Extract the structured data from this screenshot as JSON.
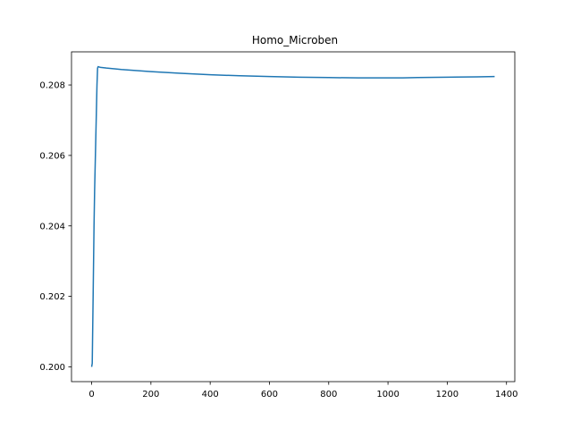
{
  "chart_data": {
    "type": "line",
    "title": "Homo_Microben",
    "xlabel": "",
    "ylabel": "",
    "xlim": [
      -68,
      1428
    ],
    "ylim": [
      0.19958,
      0.20894
    ],
    "x_ticks": [
      0,
      200,
      400,
      600,
      800,
      1000,
      1200,
      1400
    ],
    "y_ticks": [
      0.2,
      0.202,
      0.204,
      0.206,
      0.208
    ],
    "x_tick_labels": [
      "0",
      "200",
      "400",
      "600",
      "800",
      "1000",
      "1200",
      "1400"
    ],
    "y_tick_labels": [
      "0.200",
      "0.202",
      "0.204",
      "0.206",
      "0.208"
    ],
    "grid": false,
    "series": [
      {
        "color": "#1f77b4",
        "x": [
          0,
          2,
          5,
          8,
          10,
          14,
          18,
          20,
          22,
          25,
          30,
          50,
          100,
          200,
          300,
          400,
          500,
          600,
          700,
          800,
          900,
          1000,
          1050,
          1100,
          1200,
          1300,
          1360
        ],
        "y": [
          0.2,
          0.2001,
          0.202,
          0.204,
          0.205,
          0.2065,
          0.208,
          0.20848,
          0.20852,
          0.20851,
          0.2085,
          0.20848,
          0.20844,
          0.20838,
          0.20833,
          0.20829,
          0.20826,
          0.20824,
          0.20822,
          0.20821,
          0.2082,
          0.2082,
          0.2082,
          0.20821,
          0.20822,
          0.20823,
          0.20824
        ]
      }
    ]
  }
}
